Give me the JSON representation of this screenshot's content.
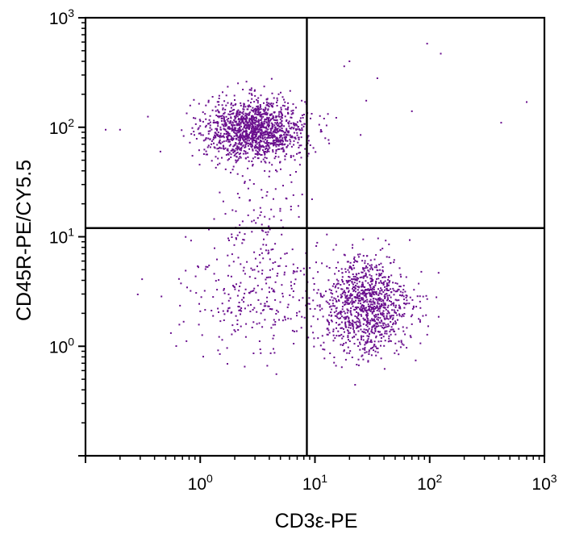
{
  "chart_data": {
    "type": "scatter",
    "title": "",
    "xlabel": "CD3ε-PE",
    "ylabel": "CD45R-PE/CY5.5",
    "xscale": "log",
    "yscale": "log",
    "xlim": [
      0.1,
      1000
    ],
    "ylim": [
      0.1,
      1000
    ],
    "grid": false,
    "legend": "none",
    "point_color": "#6a0f8e",
    "x_ticks": [
      {
        "base": "10",
        "exp": "0",
        "value": 1
      },
      {
        "base": "10",
        "exp": "1",
        "value": 10
      },
      {
        "base": "10",
        "exp": "2",
        "value": 100
      },
      {
        "base": "10",
        "exp": "3",
        "value": 1000
      }
    ],
    "y_ticks": [
      {
        "base": "10",
        "exp": "0",
        "value": 1
      },
      {
        "base": "10",
        "exp": "1",
        "value": 10
      },
      {
        "base": "10",
        "exp": "2",
        "value": 100
      },
      {
        "base": "10",
        "exp": "3",
        "value": 1000
      }
    ],
    "quadrant_gate": {
      "x": 8.5,
      "y": 12
    },
    "populations": [
      {
        "label": "CD45R+ CD3-",
        "center_x": 3.0,
        "center_y": 95,
        "spread_log10_x": 0.22,
        "spread_log10_y": 0.14,
        "approx_count": 1400
      },
      {
        "label": "CD45R- CD3+",
        "center_x": 28,
        "center_y": 2.3,
        "spread_log10_x": 0.2,
        "spread_log10_y": 0.22,
        "approx_count": 1100
      },
      {
        "label": "CD45R- CD3- (sparse)",
        "center_x": 2.8,
        "center_y": 2.8,
        "spread_log10_x": 0.3,
        "spread_log10_y": 0.28,
        "approx_count": 250
      },
      {
        "label": "bridge (sparse)",
        "center_x": 3.5,
        "center_y": 15,
        "spread_log10_x": 0.2,
        "spread_log10_y": 0.3,
        "approx_count": 120
      }
    ],
    "outlier_points": [
      {
        "x": 95,
        "y": 580
      },
      {
        "x": 125,
        "y": 470
      },
      {
        "x": 20,
        "y": 400
      },
      {
        "x": 18,
        "y": 360
      },
      {
        "x": 35,
        "y": 280
      },
      {
        "x": 28,
        "y": 175
      },
      {
        "x": 70,
        "y": 140
      },
      {
        "x": 420,
        "y": 110
      },
      {
        "x": 700,
        "y": 170
      },
      {
        "x": 25,
        "y": 85
      },
      {
        "x": 12,
        "y": 120
      },
      {
        "x": 0.2,
        "y": 95
      },
      {
        "x": 0.15,
        "y": 95
      },
      {
        "x": 0.35,
        "y": 125
      },
      {
        "x": 0.45,
        "y": 60
      }
    ]
  }
}
